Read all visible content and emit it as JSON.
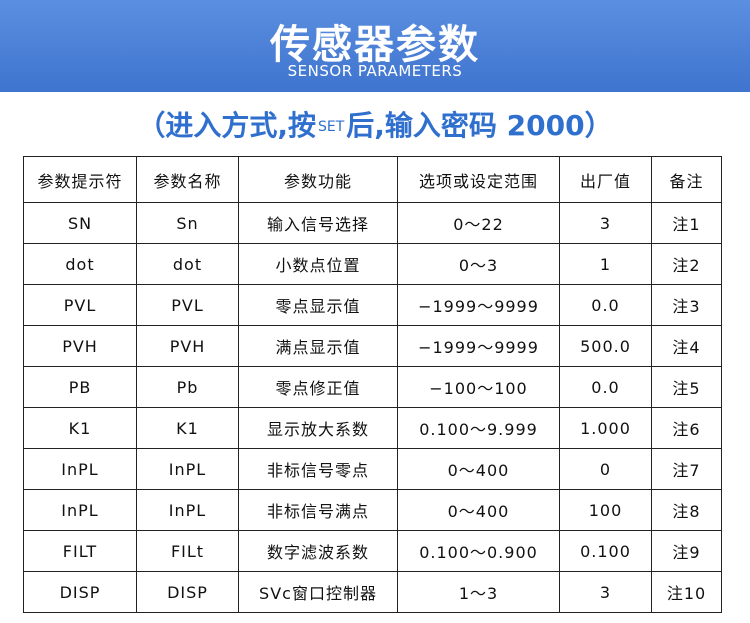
{
  "header": {
    "title": "传感器参数",
    "subtitle": "SENSOR PARAMETERS"
  },
  "instruction": {
    "prefix": "（进入方式,按",
    "key": "SET",
    "suffix": "后,输入密码 2000）"
  },
  "table": {
    "columns": [
      "参数提示符",
      "参数名称",
      "参数功能",
      "选项或设定范围",
      "出厂值",
      "备注"
    ],
    "rows": [
      [
        "SN",
        "Sn",
        "输入信号选择",
        "0～22",
        "3",
        "注1"
      ],
      [
        "dot",
        "dot",
        "小数点位置",
        "0～3",
        "1",
        "注2"
      ],
      [
        "PVL",
        "PVL",
        "零点显示值",
        "−1999～9999",
        "0.0",
        "注3"
      ],
      [
        "PVH",
        "PVH",
        "满点显示值",
        "−1999～9999",
        "500.0",
        "注4"
      ],
      [
        "PB",
        "Pb",
        "零点修正值",
        "−100～100",
        "0.0",
        "注5"
      ],
      [
        "K1",
        "K1",
        "显示放大系数",
        "0.100～9.999",
        "1.000",
        "注6"
      ],
      [
        "InPL",
        "InPL",
        "非标信号零点",
        "0～400",
        "0",
        "注7"
      ],
      [
        "InPL",
        "InPL",
        "非标信号满点",
        "0～400",
        "100",
        "注8"
      ],
      [
        "FILT",
        "FILt",
        "数字滤波系数",
        "0.100～0.900",
        "0.100",
        "注9"
      ],
      [
        "DISP",
        "DISP",
        "SVc窗口控制器",
        "1～3",
        "3",
        "注10"
      ]
    ]
  }
}
